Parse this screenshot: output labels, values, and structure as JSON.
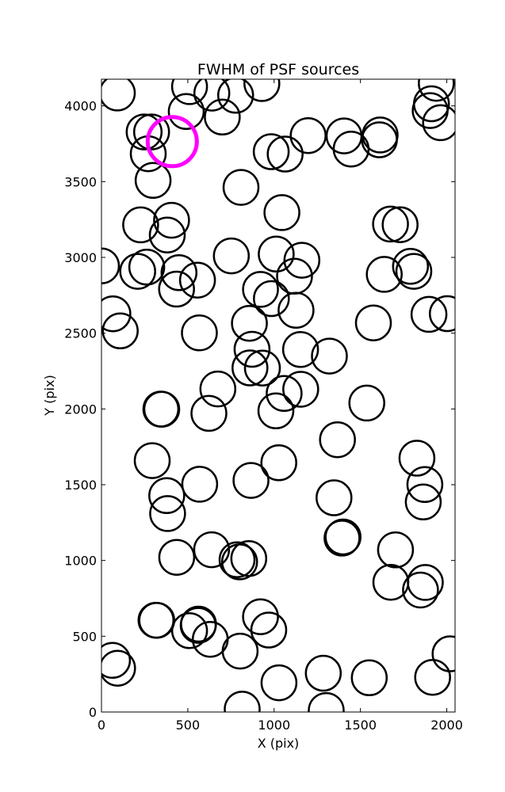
{
  "chart_data": {
    "type": "scatter",
    "title": "FWHM of PSF sources",
    "xlabel": "X (pix)",
    "ylabel": "Y (pix)",
    "xlim": [
      0,
      2048
    ],
    "ylim": [
      0,
      4176
    ],
    "xticks": [
      0,
      500,
      1000,
      1500,
      2000
    ],
    "yticks": [
      0,
      500,
      1000,
      1500,
      2000,
      2500,
      3000,
      3500,
      4000
    ],
    "xtick_labels": [
      "0",
      "500",
      "1000",
      "1500",
      "2000"
    ],
    "ytick_labels": [
      "0",
      "500",
      "1000",
      "1500",
      "2000",
      "2500",
      "3000",
      "3500",
      "4000"
    ],
    "grid": false,
    "marker": "open circle",
    "series": [
      {
        "color": "#000000",
        "points": [
          [
            92,
            4085
          ],
          [
            247,
            3828
          ],
          [
            290,
            3828
          ],
          [
            271,
            3684
          ],
          [
            299,
            3508
          ],
          [
            491,
            3963
          ],
          [
            510,
            4127
          ],
          [
            639,
            4084
          ],
          [
            700,
            3926
          ],
          [
            777,
            4070
          ],
          [
            929,
            4147
          ],
          [
            1911,
            4014
          ],
          [
            1939,
            4149
          ],
          [
            1904,
            3969
          ],
          [
            1964,
            3889
          ],
          [
            1197,
            3804
          ],
          [
            1405,
            3802
          ],
          [
            1446,
            3715
          ],
          [
            1614,
            3808
          ],
          [
            1610,
            3776
          ],
          [
            983,
            3698
          ],
          [
            1064,
            3682
          ],
          [
            808,
            3462
          ],
          [
            1045,
            3296
          ],
          [
            1674,
            3220
          ],
          [
            1730,
            3216
          ],
          [
            227,
            3215
          ],
          [
            406,
            3245
          ],
          [
            381,
            3148
          ],
          [
            0,
            2944
          ],
          [
            210,
            2908
          ],
          [
            262,
            2936
          ],
          [
            449,
            2899
          ],
          [
            435,
            2791
          ],
          [
            556,
            2850
          ],
          [
            752,
            3010
          ],
          [
            1012,
            3022
          ],
          [
            1161,
            2981
          ],
          [
            1118,
            2876
          ],
          [
            921,
            2789
          ],
          [
            984,
            2728
          ],
          [
            1127,
            2651
          ],
          [
            1638,
            2888
          ],
          [
            1790,
            2941
          ],
          [
            1809,
            2908
          ],
          [
            1575,
            2568
          ],
          [
            1897,
            2624
          ],
          [
            2003,
            2629
          ],
          [
            66,
            2628
          ],
          [
            109,
            2515
          ],
          [
            567,
            2502
          ],
          [
            857,
            2565
          ],
          [
            872,
            2394
          ],
          [
            860,
            2271
          ],
          [
            932,
            2270
          ],
          [
            1153,
            2392
          ],
          [
            1320,
            2349
          ],
          [
            674,
            2132
          ],
          [
            622,
            1971
          ],
          [
            344,
            1999
          ],
          [
            349,
            1998
          ],
          [
            1058,
            2102
          ],
          [
            1010,
            1987
          ],
          [
            1154,
            2130
          ],
          [
            1537,
            2039
          ],
          [
            1367,
            1797
          ],
          [
            294,
            1659
          ],
          [
            1027,
            1645
          ],
          [
            569,
            1503
          ],
          [
            866,
            1528
          ],
          [
            1827,
            1675
          ],
          [
            1873,
            1501
          ],
          [
            1864,
            1386
          ],
          [
            378,
            1428
          ],
          [
            383,
            1310
          ],
          [
            1347,
            1414
          ],
          [
            1393,
            1148
          ],
          [
            1399,
            1155
          ],
          [
            436,
            1021
          ],
          [
            638,
            1071
          ],
          [
            785,
            1005
          ],
          [
            853,
            1013
          ],
          [
            800,
            991
          ],
          [
            1703,
            1070
          ],
          [
            1676,
            856
          ],
          [
            1876,
            855
          ],
          [
            1848,
            805
          ],
          [
            316,
            606
          ],
          [
            320,
            605
          ],
          [
            562,
            580
          ],
          [
            560,
            572
          ],
          [
            510,
            537
          ],
          [
            630,
            480
          ],
          [
            803,
            402
          ],
          [
            921,
            629
          ],
          [
            969,
            541
          ],
          [
            64,
            341
          ],
          [
            93,
            289
          ],
          [
            1285,
            256
          ],
          [
            1551,
            226
          ],
          [
            1918,
            229
          ],
          [
            2019,
            384
          ],
          [
            1028,
            193
          ],
          [
            815,
            19
          ],
          [
            1302,
            10
          ]
        ]
      },
      {
        "color": "#ff00ff",
        "highlight": true,
        "points": [
          [
            410,
            3764
          ]
        ]
      }
    ]
  }
}
